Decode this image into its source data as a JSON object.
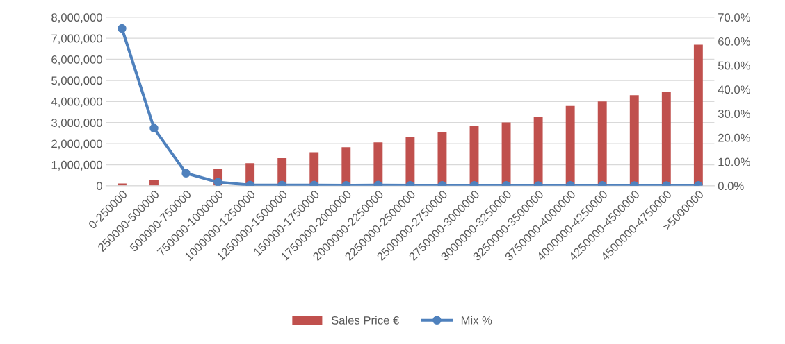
{
  "chart_data": {
    "type": "bar",
    "categories": [
      "0-250000",
      "250000-500000",
      "500000-750000",
      "750000-1000000",
      "1000000-1250000",
      "1250000-1500000",
      "150000-1750000",
      "1750000-2000000",
      "2000000-2250000",
      "2250000-2500000",
      "2500000-2750000",
      "2750000-3000000",
      "3000000-3250000",
      "3250000-3500000",
      "3750000-4000000",
      "4000000-4250000",
      "4250000-4500000",
      "4500000-4750000",
      ">5000000"
    ],
    "series": [
      {
        "name": "Sales Price €",
        "color": "#c0504d",
        "values": [
          110000,
          280000,
          null,
          790000,
          1070000,
          1310000,
          1590000,
          1830000,
          2060000,
          2300000,
          2540000,
          2840000,
          3010000,
          3290000,
          3790000,
          4000000,
          4300000,
          4470000,
          6690000
        ]
      },
      {
        "name": "Mix %",
        "type": "line",
        "axis": "y2",
        "color": "#4f81bd",
        "marker": "circle",
        "values": [
          65.3,
          23.9,
          5.2,
          1.5,
          0.3,
          0.3,
          0.3,
          0.2,
          0.3,
          0.2,
          0.2,
          0.2,
          0.2,
          0.1,
          0.2,
          0.2,
          0.1,
          0.1,
          0.2
        ]
      }
    ],
    "ylim": [
      0,
      8000000
    ],
    "yticks": [
      {
        "value": 0,
        "label": "0"
      },
      {
        "value": 1000000,
        "label": "1,000,000"
      },
      {
        "value": 2000000,
        "label": "2,000,000"
      },
      {
        "value": 3000000,
        "label": "3,000,000"
      },
      {
        "value": 4000000,
        "label": "4,000,000"
      },
      {
        "value": 5000000,
        "label": "5,000,000"
      },
      {
        "value": 6000000,
        "label": "6,000,000"
      },
      {
        "value": 7000000,
        "label": "7,000,000"
      },
      {
        "value": 8000000,
        "label": "8,000,000"
      }
    ],
    "y2lim": [
      0,
      70
    ],
    "y2ticks": [
      {
        "value": 0,
        "label": "0.0%"
      },
      {
        "value": 10,
        "label": "10.0%"
      },
      {
        "value": 20,
        "label": "20.0%"
      },
      {
        "value": 30,
        "label": "30.0%"
      },
      {
        "value": 40,
        "label": "40.0%"
      },
      {
        "value": 50,
        "label": "50.0%"
      },
      {
        "value": 60,
        "label": "60.0%"
      },
      {
        "value": 70,
        "label": "70.0%"
      }
    ],
    "grid": "y",
    "legend": "bottom"
  }
}
